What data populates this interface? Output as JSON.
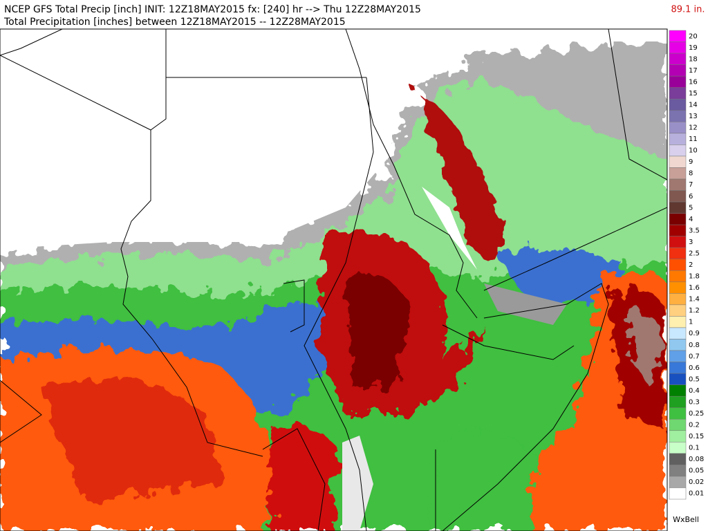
{
  "header": {
    "title": "NCEP GFS Total Precip [inch] INIT: 12Z18MAY2015 fx: [240] hr --> Thu 12Z28MAY2015",
    "subtitle": "Total Precipitation [inches] between 12Z18MAY2015 -- 12Z28MAY2015",
    "max_label": "89.1 in."
  },
  "legend": {
    "levels": [
      20,
      19,
      18,
      17,
      16,
      15,
      14,
      13,
      12,
      11,
      10,
      9,
      8,
      7,
      6,
      5,
      4,
      3.5,
      3,
      2.5,
      2,
      1.8,
      1.6,
      1.4,
      1.2,
      1,
      0.9,
      0.8,
      0.7,
      0.6,
      0.5,
      0.4,
      0.3,
      0.25,
      0.2,
      0.15,
      0.1,
      0.08,
      0.05,
      0.02,
      0.01
    ],
    "colors": [
      "#ff00ff",
      "#e600e6",
      "#cc00cc",
      "#b300b3",
      "#990099",
      "#7a3d99",
      "#6a5aa0",
      "#7b72b0",
      "#9a90c8",
      "#b8b0dc",
      "#d8d0ec",
      "#f0d8d0",
      "#c8a098",
      "#a07870",
      "#805850",
      "#603830",
      "#7a0000",
      "#a00000",
      "#d01010",
      "#f03010",
      "#ff5000",
      "#ff7800",
      "#ff9000",
      "#ffb040",
      "#ffd080",
      "#fff0b0",
      "#c8e8ff",
      "#90c8f0",
      "#60a0e8",
      "#3878d8",
      "#1850c0",
      "#008000",
      "#20a020",
      "#40c040",
      "#70d870",
      "#a0eea0",
      "#c8ffc8",
      "#606060",
      "#808080",
      "#a8a8a8",
      "#ffffff"
    ]
  },
  "credit": "WxBell"
}
